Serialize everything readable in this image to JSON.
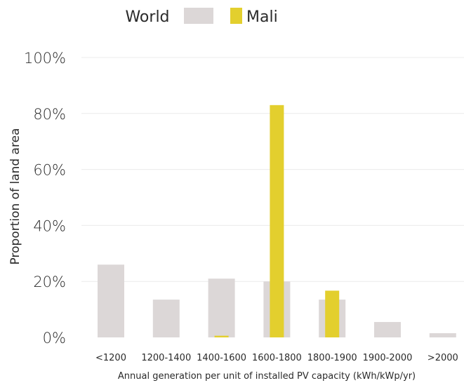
{
  "chart_data": {
    "type": "bar",
    "categories": [
      "<1200",
      "1200-1400",
      "1400-1600",
      "1600-1800",
      "1800-1900",
      "1900-2000",
      ">2000"
    ],
    "series": [
      {
        "name": "World",
        "values": [
          26,
          13.5,
          21,
          20,
          13.5,
          5.5,
          1.5
        ],
        "color": "#dcd7d7"
      },
      {
        "name": "Mali",
        "values": [
          0,
          0,
          0.6,
          83,
          16.7,
          0,
          0
        ],
        "color": "#e3cf2e"
      }
    ],
    "xlabel": "Annual generation per unit of installed PV capacity (kWh/kWp/yr)",
    "ylabel": "Proportion of land area",
    "ylim": [
      0,
      100
    ],
    "yticks": [
      "0%",
      "20%",
      "40%",
      "60%",
      "80%",
      "100%"
    ],
    "ytick_values": [
      0,
      20,
      40,
      60,
      80,
      100
    ],
    "grid": true,
    "legend_position": "top"
  }
}
